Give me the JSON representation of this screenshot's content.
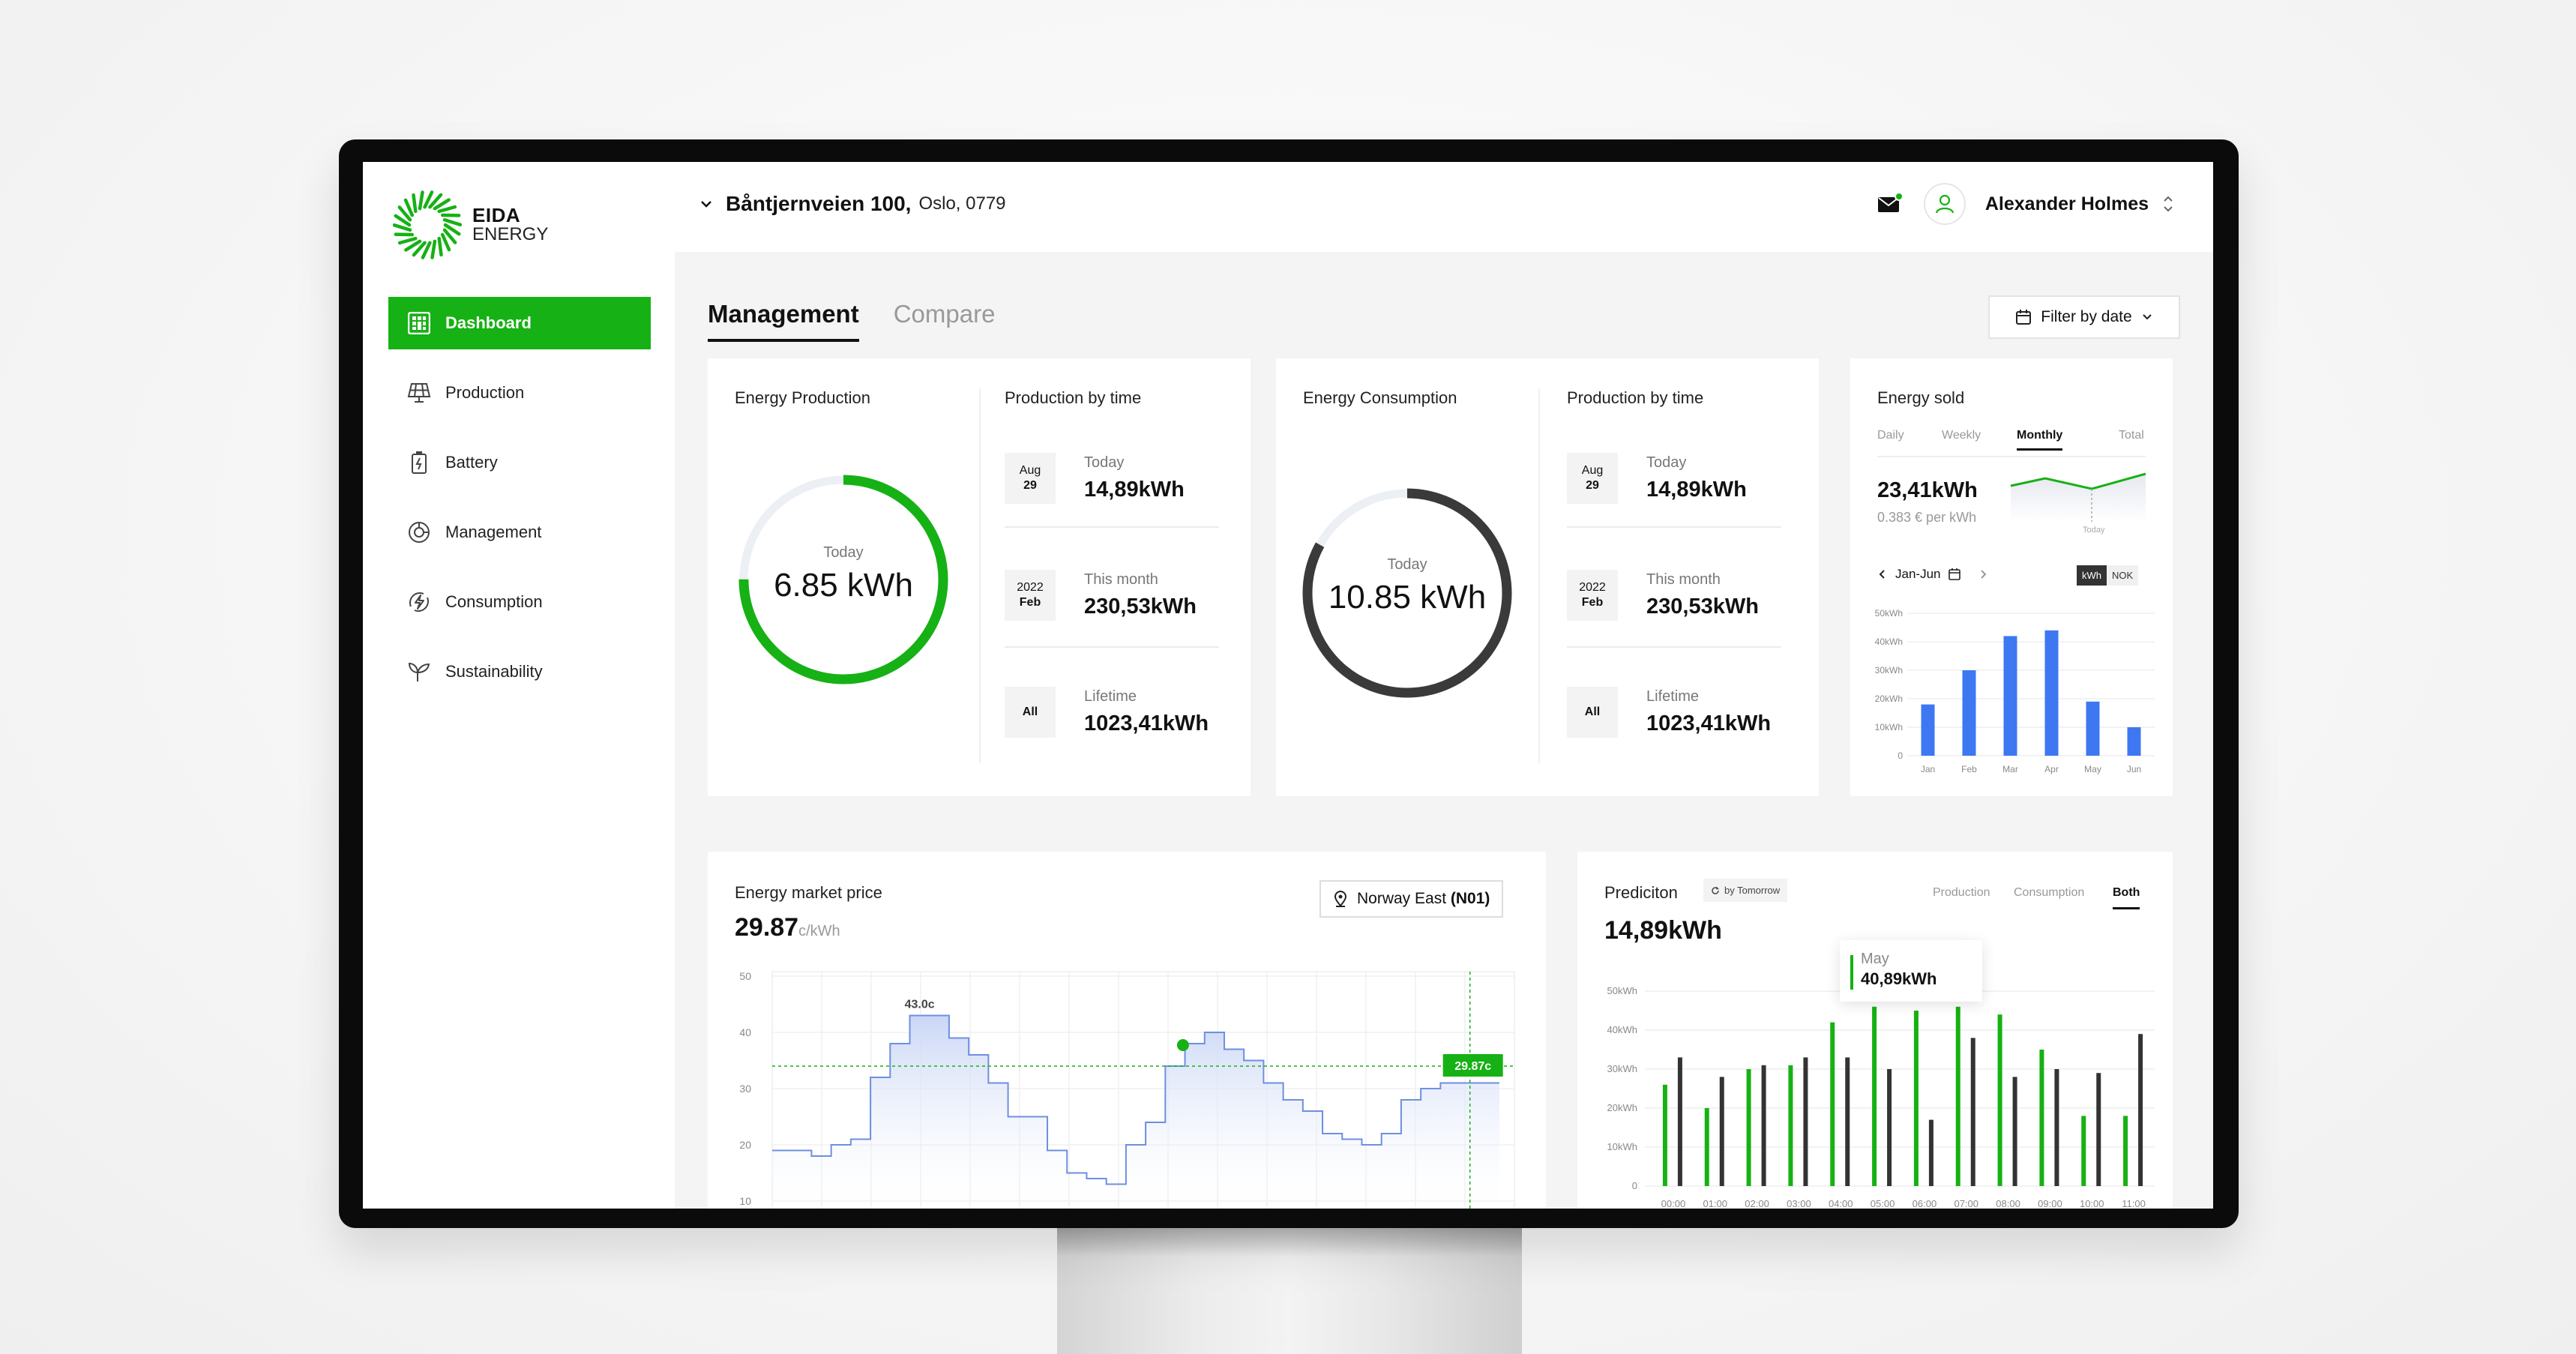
{
  "brand": {
    "line1": "EIDA",
    "line2": "ENERGY",
    "color": "#16b114"
  },
  "sidebar": {
    "items": [
      {
        "label": "Dashboard",
        "icon": "dashboard-icon",
        "active": true
      },
      {
        "label": "Production",
        "icon": "solar-panel-icon",
        "active": false
      },
      {
        "label": "Battery",
        "icon": "battery-icon",
        "active": false
      },
      {
        "label": "Management",
        "icon": "pie-chart-icon",
        "active": false
      },
      {
        "label": "Consumption",
        "icon": "bolt-icon",
        "active": false
      },
      {
        "label": "Sustainability",
        "icon": "leaf-icon",
        "active": false
      }
    ]
  },
  "header": {
    "address": "Båntjernveien 100,",
    "city": "Oslo, 0779",
    "user_name": "Alexander Holmes"
  },
  "tabs": [
    {
      "label": "Management",
      "active": true
    },
    {
      "label": "Compare",
      "active": false
    }
  ],
  "filter_label": "Filter by date",
  "production_card": {
    "title": "Energy Production",
    "today_label": "Today",
    "value": "6.85 kWh",
    "progress": 0.75,
    "by_time_title": "Production by time",
    "rows": [
      {
        "box_top": "Aug",
        "box_bottom": "29",
        "label": "Today",
        "value": "14,89kWh"
      },
      {
        "box_top": "2022",
        "box_bottom": "Feb",
        "label": "This month",
        "value": "230,53kWh"
      },
      {
        "box_top": "",
        "box_bottom": "All",
        "label": "Lifetime",
        "value": "1023,41kWh"
      }
    ]
  },
  "consumption_card": {
    "title": "Energy Consumption",
    "today_label": "Today",
    "value": "10.85 kWh",
    "progress": 0.83,
    "by_time_title": "Production by time",
    "rows": [
      {
        "box_top": "Aug",
        "box_bottom": "29",
        "label": "Today",
        "value": "14,89kWh"
      },
      {
        "box_top": "2022",
        "box_bottom": "Feb",
        "label": "This month",
        "value": "230,53kWh"
      },
      {
        "box_top": "",
        "box_bottom": "All",
        "label": "Lifetime",
        "value": "1023,41kWh"
      }
    ]
  },
  "energy_sold": {
    "title": "Energy sold",
    "periods": [
      "Daily",
      "Weekly",
      "Monthly",
      "Total"
    ],
    "active_period": "Monthly",
    "value": "23,41kWh",
    "sub": "0.383 € per kWh",
    "spark_label": "Today",
    "range_label": "Jan-Jun",
    "units": [
      "kWh",
      "NOK"
    ],
    "active_unit": "kWh"
  },
  "market_price": {
    "title": "Energy market price",
    "value": "29.87",
    "unit": "c/kWh",
    "region": "Norway East",
    "region_code": "(N01)",
    "peak_label": "43.0c",
    "current_label": "29.87c"
  },
  "prediction": {
    "title": "Prediciton",
    "source": "by Tomorrow",
    "value": "14,89kWh",
    "tabs": [
      "Production",
      "Consumption",
      "Both"
    ],
    "active_tab": "Both",
    "tooltip_month": "May",
    "tooltip_value": "40,89kWh"
  },
  "chart_data": [
    {
      "type": "bar",
      "title": "Energy sold",
      "categories": [
        "Jan",
        "Feb",
        "Mar",
        "Apr",
        "May",
        "Jun"
      ],
      "values": [
        18,
        30,
        42,
        44,
        19,
        10
      ],
      "ylim": [
        0,
        50
      ],
      "yticks": [
        "0",
        "10kWh",
        "20kWh",
        "30kWh",
        "40kWh",
        "50kWh"
      ],
      "color": "#3d78f2"
    },
    {
      "type": "line",
      "title": "Energy market price",
      "x": [
        0,
        1,
        2,
        3,
        4,
        5,
        6,
        7,
        8,
        9,
        10,
        11,
        12,
        13,
        14,
        15,
        16,
        17,
        18,
        19,
        20,
        21,
        22,
        23,
        24,
        25,
        26,
        27,
        28,
        29,
        30,
        31,
        32,
        33,
        34,
        35,
        36
      ],
      "values": [
        19,
        19,
        18,
        20,
        21,
        32,
        38,
        43,
        43,
        39,
        36,
        31,
        25,
        25,
        19,
        15,
        14,
        13,
        20,
        24,
        34,
        38,
        40,
        37,
        35,
        31,
        28,
        26,
        22,
        21,
        20,
        22,
        28,
        30,
        31,
        31,
        31
      ],
      "ylim": [
        10,
        50
      ],
      "yticks": [
        "10",
        "20",
        "30",
        "40",
        "50"
      ],
      "threshold": 34,
      "marker_index": 20
    },
    {
      "type": "bar",
      "title": "Prediciton",
      "categories": [
        "00:00",
        "01:00",
        "02:00",
        "03:00",
        "04:00",
        "05:00",
        "06:00",
        "07:00",
        "08:00",
        "09:00",
        "10:00",
        "11:00"
      ],
      "series": [
        {
          "name": "Production",
          "values": [
            26,
            20,
            30,
            31,
            42,
            46,
            45,
            46,
            44,
            35,
            18,
            18
          ],
          "color": "#16b114"
        },
        {
          "name": "Consumption",
          "values": [
            33,
            28,
            31,
            33,
            33,
            30,
            17,
            38,
            28,
            30,
            29,
            39
          ],
          "color": "#333333"
        }
      ],
      "ylim": [
        0,
        50
      ],
      "yticks": [
        "0",
        "10kWh",
        "20kWh",
        "30kWh",
        "40kWh",
        "50kWh"
      ]
    }
  ]
}
